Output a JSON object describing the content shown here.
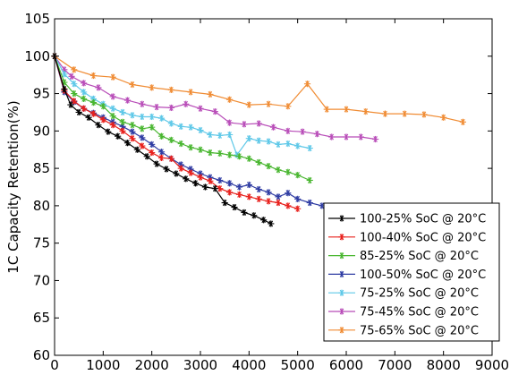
{
  "chart_data": {
    "type": "line",
    "title": "",
    "xlabel": "",
    "ylabel": "1C Capacity Retention(%)",
    "xlim": [
      0,
      9000
    ],
    "ylim": [
      60,
      105
    ],
    "xticks": [
      "0",
      "1000",
      "2000",
      "3000",
      "4000",
      "5000",
      "6000",
      "7000",
      "8000",
      "9000"
    ],
    "yticks": [
      "60",
      "65",
      "70",
      "75",
      "80",
      "85",
      "90",
      "95",
      "100",
      "105"
    ],
    "xtick_values": [
      0,
      1000,
      2000,
      3000,
      4000,
      5000,
      6000,
      7000,
      8000,
      9000
    ],
    "ytick_values": [
      60,
      65,
      70,
      75,
      80,
      85,
      90,
      95,
      100,
      105
    ],
    "grid": false,
    "legend_position": "bottom-right",
    "series": [
      {
        "name": "100-25% SoC @ 20°C",
        "color": "#000000",
        "marker": "asterisk",
        "x": [
          0,
          200,
          330,
          500,
          700,
          900,
          1100,
          1300,
          1500,
          1700,
          1900,
          2100,
          2300,
          2500,
          2700,
          2900,
          3100,
          3300,
          3500,
          3700,
          3900,
          4100,
          4300,
          4450
        ],
        "y": [
          100,
          95.6,
          93.5,
          92.5,
          91.8,
          90.8,
          89.9,
          89.3,
          88.4,
          87.5,
          86.6,
          85.6,
          84.9,
          84.3,
          83.6,
          83.0,
          82.5,
          82.3,
          80.4,
          79.8,
          79.1,
          78.7,
          78.1,
          77.6
        ]
      },
      {
        "name": "100-40% SoC @ 20°C",
        "color": "#e8201c",
        "marker": "asterisk",
        "x": [
          0,
          200,
          400,
          600,
          800,
          1000,
          1200,
          1400,
          1600,
          1800,
          2000,
          2200,
          2400,
          2600,
          2800,
          3000,
          3200,
          3400,
          3600,
          3800,
          4000,
          4200,
          4400,
          4600,
          4800,
          5000
        ],
        "y": [
          100,
          95.4,
          94.0,
          93.0,
          92.3,
          91.5,
          90.8,
          90.0,
          89.0,
          88.0,
          87.1,
          86.4,
          86.3,
          85.0,
          84.4,
          83.8,
          83.3,
          82.3,
          81.8,
          81.5,
          81.2,
          80.9,
          80.6,
          80.4,
          80.0,
          79.6
        ]
      },
      {
        "name": "85-25% SoC @ 20°C",
        "color": "#49b630",
        "marker": "asterisk",
        "x": [
          0,
          200,
          400,
          600,
          800,
          1000,
          1200,
          1400,
          1600,
          1800,
          2000,
          2200,
          2400,
          2600,
          2800,
          3000,
          3200,
          3400,
          3600,
          3800,
          4000,
          4200,
          4400,
          4600,
          4800,
          5000,
          5250
        ],
        "y": [
          100,
          96.5,
          95.0,
          94.3,
          93.8,
          93.3,
          92.0,
          91.2,
          90.8,
          90.3,
          90.5,
          89.3,
          88.8,
          88.3,
          87.8,
          87.5,
          87.1,
          87.0,
          86.8,
          86.6,
          86.3,
          85.8,
          85.3,
          84.8,
          84.5,
          84.1,
          83.4
        ]
      },
      {
        "name": "100-50% SoC @ 20°C",
        "color": "#2f3ca3",
        "marker": "asterisk",
        "x": [
          0,
          200,
          400,
          600,
          800,
          1000,
          1200,
          1400,
          1600,
          1800,
          2000,
          2200,
          2400,
          2600,
          2800,
          3000,
          3200,
          3400,
          3600,
          3800,
          4000,
          4200,
          4400,
          4600,
          4800,
          5000,
          5250,
          5500
        ],
        "y": [
          100,
          95.2,
          93.9,
          93.0,
          92.4,
          91.8,
          91.2,
          90.6,
          89.9,
          89.1,
          88.2,
          87.2,
          86.3,
          85.5,
          84.9,
          84.3,
          83.8,
          83.4,
          83.0,
          82.5,
          82.8,
          82.2,
          81.8,
          81.2,
          81.7,
          80.9,
          80.4,
          80.0
        ]
      },
      {
        "name": "75-25% SoC @ 20°C",
        "color": "#5ec8e8",
        "marker": "asterisk",
        "x": [
          0,
          200,
          400,
          600,
          800,
          1000,
          1200,
          1400,
          1600,
          1800,
          2000,
          2200,
          2400,
          2600,
          2800,
          3000,
          3200,
          3400,
          3600,
          3750,
          4000,
          4200,
          4400,
          4600,
          4800,
          5000,
          5250
        ],
        "y": [
          100,
          97.6,
          96.3,
          95.2,
          94.3,
          93.6,
          93.0,
          92.5,
          92.1,
          91.9,
          91.9,
          91.7,
          91.0,
          90.6,
          90.5,
          90.1,
          89.5,
          89.4,
          89.5,
          86.8,
          89.0,
          88.7,
          88.6,
          88.2,
          88.3,
          88.0,
          87.7
        ]
      },
      {
        "name": "75-45% SoC @ 20°C",
        "color": "#b84cb8",
        "marker": "asterisk",
        "x": [
          0,
          200,
          350,
          600,
          900,
          1200,
          1500,
          1800,
          2100,
          2400,
          2700,
          3000,
          3300,
          3600,
          3900,
          4200,
          4500,
          4800,
          5100,
          5400,
          5700,
          6000,
          6300,
          6600
        ],
        "y": [
          100,
          98.2,
          97.3,
          96.4,
          95.8,
          94.6,
          94.1,
          93.6,
          93.2,
          93.1,
          93.6,
          93.0,
          92.6,
          91.1,
          90.9,
          91.0,
          90.5,
          90.0,
          89.9,
          89.6,
          89.2,
          89.2,
          89.2,
          88.9
        ]
      },
      {
        "name": "75-65% SoC @ 20°C",
        "color": "#f08c34",
        "marker": "asterisk",
        "x": [
          0,
          400,
          800,
          1200,
          1600,
          2000,
          2400,
          2800,
          3200,
          3600,
          4000,
          4400,
          4800,
          5200,
          5600,
          6000,
          6400,
          6800,
          7200,
          7600,
          8000,
          8400
        ],
        "y": [
          100,
          98.2,
          97.4,
          97.2,
          96.2,
          95.8,
          95.5,
          95.2,
          94.9,
          94.2,
          93.5,
          93.6,
          93.3,
          96.3,
          92.9,
          92.9,
          92.6,
          92.3,
          92.3,
          92.2,
          91.8,
          91.2
        ]
      }
    ]
  }
}
